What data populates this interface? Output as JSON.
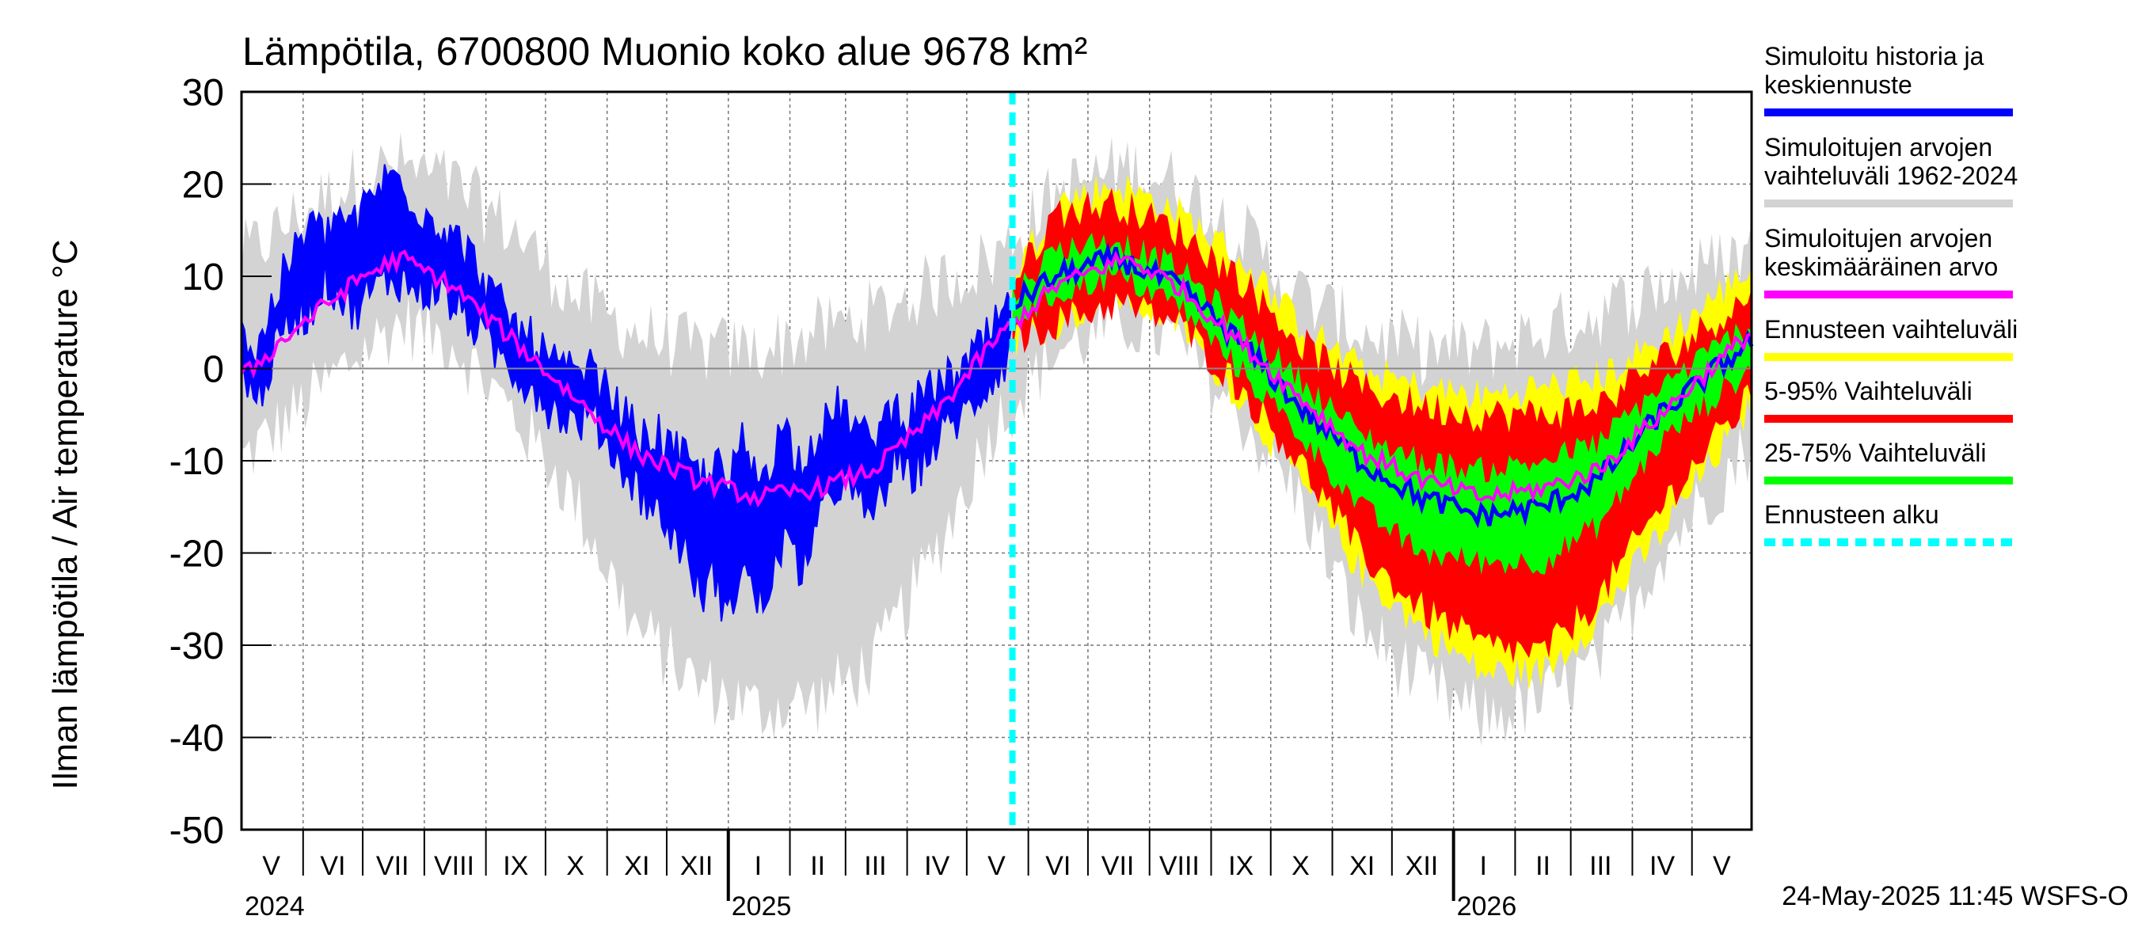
{
  "chart_data": {
    "type": "area",
    "title": "Lämpötila, 6700800 Muonio koko alue 9678 km²",
    "ylabel": "Ilman lämpötila / Air temperature   °C",
    "xlabel": "",
    "ylim": [
      -50,
      30
    ],
    "yticks": [
      30,
      20,
      10,
      0,
      -10,
      -20,
      -30,
      -40,
      -50
    ],
    "xlim": [
      "2024-05-01",
      "2026-05-31"
    ],
    "forecast_start": "2025-05-24",
    "grid": true,
    "legend_position": "right",
    "month_labels": [
      {
        "label": "V",
        "date": "2024-05-16"
      },
      {
        "label": "VI",
        "date": "2024-06-16"
      },
      {
        "label": "VII",
        "date": "2024-07-16"
      },
      {
        "label": "VIII",
        "date": "2024-08-16"
      },
      {
        "label": "IX",
        "date": "2024-09-16"
      },
      {
        "label": "X",
        "date": "2024-10-16"
      },
      {
        "label": "XI",
        "date": "2024-11-16"
      },
      {
        "label": "XII",
        "date": "2024-12-16"
      },
      {
        "label": "I",
        "date": "2025-01-16"
      },
      {
        "label": "II",
        "date": "2025-02-15"
      },
      {
        "label": "III",
        "date": "2025-03-16"
      },
      {
        "label": "IV",
        "date": "2025-04-16"
      },
      {
        "label": "V",
        "date": "2025-05-16"
      },
      {
        "label": "VI",
        "date": "2025-06-16"
      },
      {
        "label": "VII",
        "date": "2025-07-16"
      },
      {
        "label": "VIII",
        "date": "2025-08-16"
      },
      {
        "label": "IX",
        "date": "2025-09-16"
      },
      {
        "label": "X",
        "date": "2025-10-16"
      },
      {
        "label": "XI",
        "date": "2025-11-16"
      },
      {
        "label": "XII",
        "date": "2025-12-16"
      },
      {
        "label": "I",
        "date": "2026-01-16"
      },
      {
        "label": "II",
        "date": "2026-02-15"
      },
      {
        "label": "III",
        "date": "2026-03-16"
      },
      {
        "label": "IV",
        "date": "2026-04-16"
      },
      {
        "label": "V",
        "date": "2026-05-16"
      }
    ],
    "year_labels": [
      {
        "label": "2024",
        "date": "2024-05-01"
      },
      {
        "label": "2025",
        "date": "2025-01-01"
      },
      {
        "label": "2026",
        "date": "2026-01-01"
      }
    ],
    "legend": [
      {
        "label": "Simuloitu historia ja keskiennuste",
        "color": "#0000ff",
        "style": "solid"
      },
      {
        "label": "Simuloitujen arvojen vaihteluväli 1962-2024",
        "color": "#d3d3d3",
        "style": "solid"
      },
      {
        "label": "Simuloitujen arvojen keskimääräinen arvo",
        "color": "#ff00ff",
        "style": "solid"
      },
      {
        "label": "Ennusteen vaihteluväli",
        "color": "#ffff00",
        "style": "solid"
      },
      {
        "label": "5-95% Vaihteluväli",
        "color": "#ff0000",
        "style": "solid"
      },
      {
        "label": "25-75% Vaihteluväli",
        "color": "#00ff00",
        "style": "solid"
      },
      {
        "label": "Ennusteen alku",
        "color": "#00ffff",
        "style": "dashed"
      }
    ],
    "legend_lines": [
      [
        "Simuloitu historia ja",
        "keskiennuste"
      ],
      [
        "Simuloitujen arvojen",
        "vaihteluväli 1962-2024"
      ],
      [
        "Simuloitujen arvojen",
        "keskimääräinen arvo"
      ],
      [
        "Ennusteen vaihteluväli"
      ],
      [
        "5-95% Vaihteluväli"
      ],
      [
        "25-75% Vaihteluväli"
      ],
      [
        "Ennusteen alku"
      ]
    ],
    "footer": "24-May-2025 11:45 WSFS-O",
    "series": {
      "climatology_mean": {
        "name": "Simuloitujen arvojen keskimääräinen arvo",
        "x": [
          "2024-05-01",
          "2024-06-01",
          "2024-07-01",
          "2024-07-20",
          "2024-08-15",
          "2024-09-15",
          "2024-10-15",
          "2024-11-15",
          "2024-12-15",
          "2025-01-15",
          "2025-02-15",
          "2025-03-15",
          "2025-04-15",
          "2025-05-15",
          "2025-06-15",
          "2025-07-20",
          "2025-08-15",
          "2025-09-15",
          "2025-10-15",
          "2025-11-15",
          "2025-12-15",
          "2026-01-15",
          "2026-02-15",
          "2026-03-15",
          "2026-04-15",
          "2026-05-31"
        ],
        "values": [
          -1,
          5,
          10,
          12,
          9,
          3,
          -3,
          -9,
          -12,
          -14,
          -13,
          -11,
          -5,
          3,
          9,
          12,
          9,
          3,
          -3,
          -9,
          -12,
          -14,
          -13,
          -11,
          -5,
          4
        ]
      },
      "climatology_range": {
        "name": "Simuloitujen arvojen vaihteluväli 1962-2024",
        "x": [
          "2024-05-01",
          "2024-06-01",
          "2024-07-01",
          "2024-07-20",
          "2024-08-15",
          "2024-09-15",
          "2024-10-15",
          "2024-11-15",
          "2024-12-15",
          "2025-01-15",
          "2025-02-15",
          "2025-03-15",
          "2025-04-15",
          "2025-05-15",
          "2025-06-15",
          "2025-07-20",
          "2025-08-15",
          "2025-09-15",
          "2025-10-15",
          "2025-11-15",
          "2025-12-15",
          "2026-01-15",
          "2026-02-15",
          "2026-03-15",
          "2026-04-15",
          "2026-05-31"
        ],
        "low": [
          -10,
          -4,
          2,
          5,
          3,
          -5,
          -14,
          -28,
          -34,
          -37,
          -36,
          -32,
          -20,
          -6,
          2,
          5,
          3,
          -5,
          -14,
          -28,
          -34,
          -38,
          -36,
          -32,
          -20,
          -8
        ],
        "high": [
          12,
          17,
          21,
          22,
          20,
          15,
          8,
          4,
          2,
          2,
          4,
          6,
          9,
          12,
          19,
          22,
          20,
          15,
          8,
          4,
          2,
          2,
          4,
          6,
          9,
          13
        ]
      },
      "history": {
        "name": "Simuloitu historia ja keskiennuste",
        "x": [
          "2024-05-01",
          "2024-05-08",
          "2024-05-15",
          "2024-05-22",
          "2024-05-29",
          "2024-06-05",
          "2024-06-12",
          "2024-06-19",
          "2024-06-26",
          "2024-07-03",
          "2024-07-10",
          "2024-07-17",
          "2024-07-24",
          "2024-07-31",
          "2024-08-07",
          "2024-08-14",
          "2024-08-21",
          "2024-08-28",
          "2024-09-04",
          "2024-09-11",
          "2024-09-18",
          "2024-09-25",
          "2024-10-02",
          "2024-10-09",
          "2024-10-16",
          "2024-10-23",
          "2024-10-30",
          "2024-11-06",
          "2024-11-13",
          "2024-11-20",
          "2024-11-27",
          "2024-12-04",
          "2024-12-11",
          "2024-12-18",
          "2024-12-25",
          "2025-01-01",
          "2025-01-08",
          "2025-01-15",
          "2025-01-22",
          "2025-01-29",
          "2025-02-05",
          "2025-02-12",
          "2025-02-19",
          "2025-02-26",
          "2025-03-05",
          "2025-03-12",
          "2025-03-19",
          "2025-03-26",
          "2025-04-02",
          "2025-04-09",
          "2025-04-16",
          "2025-04-23",
          "2025-04-30",
          "2025-05-07",
          "2025-05-14",
          "2025-05-21",
          "2025-05-24"
        ],
        "low": [
          1,
          -4,
          0,
          4,
          6,
          6,
          10,
          8,
          6,
          8,
          9,
          10,
          9,
          8,
          9,
          7,
          6,
          4,
          2,
          1,
          -1,
          -2,
          -4,
          -5,
          -6,
          -5,
          -7,
          -10,
          -12,
          -14,
          -16,
          -18,
          -20,
          -25,
          -22,
          -28,
          -20,
          -26,
          -24,
          -18,
          -22,
          -19,
          -15,
          -12,
          -14,
          -16,
          -14,
          -10,
          -12,
          -10,
          -8,
          -6,
          -5,
          -3,
          -1,
          1,
          3
        ],
        "high": [
          5,
          1,
          6,
          10,
          13,
          16,
          14,
          17,
          15,
          18,
          20,
          21,
          19,
          17,
          16,
          15,
          13,
          11,
          8,
          6,
          4,
          3,
          1,
          0,
          -1,
          0,
          -2,
          -4,
          -6,
          -8,
          -7,
          -9,
          -10,
          -12,
          -10,
          -13,
          -8,
          -12,
          -10,
          -6,
          -10,
          -8,
          -6,
          -4,
          -6,
          -8,
          -6,
          -4,
          -5,
          -3,
          -2,
          -1,
          0,
          2,
          4,
          6,
          8
        ]
      },
      "forecast_full": {
        "name": "Ennusteen vaihteluväli",
        "x": [
          "2025-05-24",
          "2025-06-15",
          "2025-07-15",
          "2025-08-15",
          "2025-09-15",
          "2025-10-15",
          "2025-11-15",
          "2025-12-15",
          "2026-01-15",
          "2026-02-15",
          "2026-03-15",
          "2026-04-15",
          "2026-05-31"
        ],
        "low": [
          3,
          5,
          8,
          5,
          -3,
          -12,
          -22,
          -28,
          -33,
          -33,
          -27,
          -18,
          -4
        ],
        "high": [
          10,
          18,
          20,
          17,
          12,
          5,
          0,
          -2,
          -3,
          -2,
          -1,
          3,
          11
        ]
      },
      "forecast_5_95": {
        "name": "5-95% Vaihteluväli",
        "x": [
          "2025-05-24",
          "2025-06-15",
          "2025-07-15",
          "2025-08-15",
          "2025-09-15",
          "2025-10-15",
          "2025-11-15",
          "2025-12-15",
          "2026-01-15",
          "2026-02-15",
          "2026-03-15",
          "2026-04-15",
          "2026-05-31"
        ],
        "low": [
          3,
          5,
          7,
          5,
          -2,
          -10,
          -20,
          -26,
          -30,
          -31,
          -25,
          -15,
          -3
        ],
        "high": [
          9,
          17,
          18,
          15,
          10,
          3,
          -2,
          -4,
          -5,
          -5,
          -4,
          1,
          8
        ]
      },
      "forecast_25_75": {
        "name": "25-75% Vaihteluväli",
        "x": [
          "2025-05-24",
          "2025-06-15",
          "2025-07-15",
          "2025-08-15",
          "2025-09-15",
          "2025-10-15",
          "2025-11-15",
          "2025-12-15",
          "2026-01-15",
          "2026-02-15",
          "2026-03-15",
          "2026-04-15",
          "2026-05-31"
        ],
        "low": [
          5,
          8,
          10,
          7,
          0,
          -7,
          -15,
          -20,
          -21,
          -21,
          -17,
          -8,
          0
        ],
        "high": [
          8,
          13,
          14,
          11,
          5,
          -1,
          -7,
          -10,
          -11,
          -10,
          -8,
          -2,
          5
        ]
      },
      "forecast_mean": {
        "name": "Simuloitu historia ja keskiennuste",
        "x": [
          "2025-05-24",
          "2025-06-15",
          "2025-07-15",
          "2025-08-15",
          "2025-09-15",
          "2025-10-15",
          "2025-11-15",
          "2025-12-15",
          "2026-01-15",
          "2026-02-15",
          "2026-03-15",
          "2026-04-15",
          "2026-05-31"
        ],
        "values": [
          7,
          10,
          12,
          9,
          3,
          -4,
          -10,
          -14,
          -16,
          -15,
          -12,
          -5,
          3
        ]
      }
    }
  }
}
